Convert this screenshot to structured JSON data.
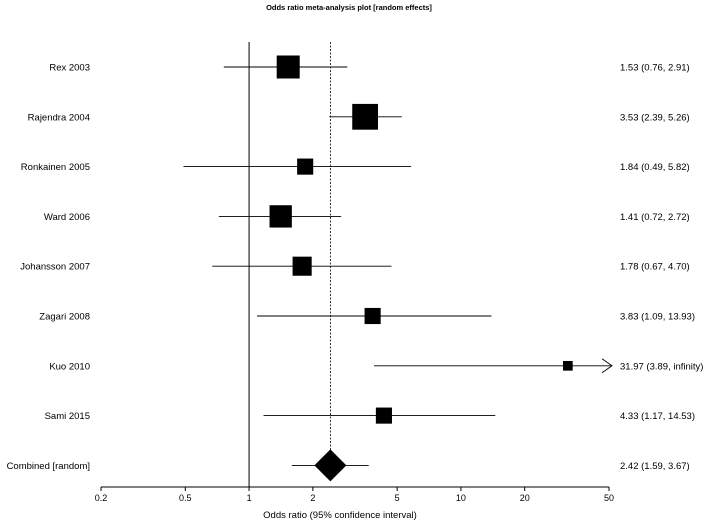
{
  "chart_data": {
    "type": "forest",
    "title": "Odds ratio meta-analysis plot [random effects]",
    "xlabel": "Odds ratio (95% confidence interval)",
    "xscale": "log",
    "xlim": [
      0.2,
      50
    ],
    "xticks": [
      {
        "value": 0.2,
        "label": "0.2"
      },
      {
        "value": 0.5,
        "label": "0.5"
      },
      {
        "value": 1,
        "label": "1"
      },
      {
        "value": 2,
        "label": "2"
      },
      {
        "value": 5,
        "label": "5"
      },
      {
        "value": 10,
        "label": "10"
      },
      {
        "value": 20,
        "label": "20"
      },
      {
        "value": 50,
        "label": "50"
      }
    ],
    "reference_line": 1,
    "pooled_line": 2.42,
    "studies": [
      {
        "name": "Rex 2003",
        "or": 1.53,
        "lo": 0.76,
        "hi": 2.91,
        "weight": 1.0,
        "label": "1.53 (0.76, 2.91)"
      },
      {
        "name": "Rajendra 2004",
        "or": 3.53,
        "lo": 2.39,
        "hi": 5.26,
        "weight": 1.12,
        "label": "3.53 (2.39, 5.26)"
      },
      {
        "name": "Ronkainen 2005",
        "or": 1.84,
        "lo": 0.49,
        "hi": 5.82,
        "weight": 0.7,
        "label": "1.84 (0.49, 5.82)"
      },
      {
        "name": "Ward 2006",
        "or": 1.41,
        "lo": 0.72,
        "hi": 2.72,
        "weight": 0.97,
        "label": "1.41 (0.72, 2.72)"
      },
      {
        "name": "Johansson 2007",
        "or": 1.78,
        "lo": 0.67,
        "hi": 4.7,
        "weight": 0.83,
        "label": "1.78 (0.67, 4.70)"
      },
      {
        "name": "Zagari 2008",
        "or": 3.83,
        "lo": 1.09,
        "hi": 13.93,
        "weight": 0.7,
        "label": "3.83 (1.09, 13.93)"
      },
      {
        "name": "Kuo 2010",
        "or": 31.97,
        "lo": 3.89,
        "hi": "infinity",
        "weight": 0.42,
        "label": "31.97 (3.89, infinity)"
      },
      {
        "name": "Sami 2015",
        "or": 4.33,
        "lo": 1.17,
        "hi": 14.53,
        "weight": 0.7,
        "label": "4.33 (1.17, 14.53)"
      }
    ],
    "combined": {
      "name": "Combined [random]",
      "or": 2.42,
      "lo": 1.59,
      "hi": 3.67,
      "label": "2.42 (1.59, 3.67)"
    }
  }
}
